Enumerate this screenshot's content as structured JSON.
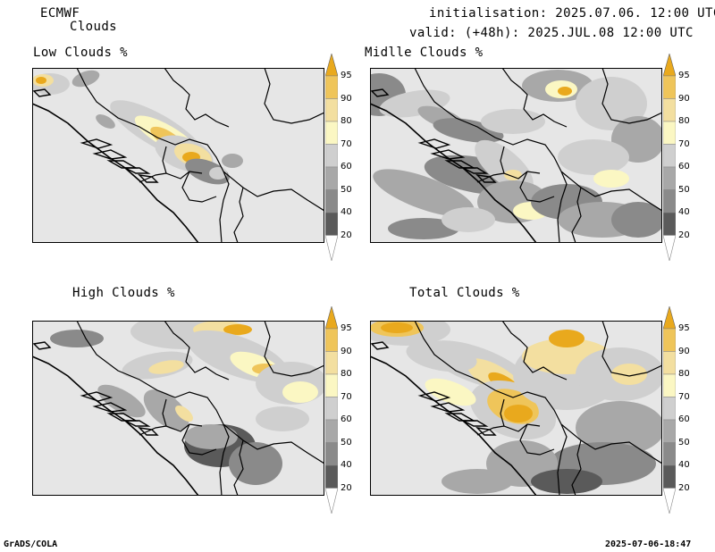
{
  "header": {
    "model": "ECMWF",
    "product": "Clouds",
    "initialisation": "initialisation: 2025.07.06. 12:00 UTC",
    "valid": "valid: (+48h): 2025.JUL.08 12:00 UTC"
  },
  "panels": [
    {
      "id": "low",
      "title": "Low Clouds %"
    },
    {
      "id": "middle",
      "title": "Midlle Clouds %"
    },
    {
      "id": "high",
      "title": "High Clouds %"
    },
    {
      "id": "total",
      "title": "Total Clouds %"
    }
  ],
  "colorbar": {
    "levels": [
      "20",
      "40",
      "50",
      "60",
      "70",
      "80",
      "90",
      "95"
    ],
    "colors": {
      "below20": "#ffffff",
      "20-40": "#5a5a5a",
      "40-50": "#8a8a8a",
      "50-60": "#a8a8a8",
      "60-70": "#cfcfcf",
      "70-80": "#fbf7c3",
      "80-90": "#f3dfa0",
      "90-95": "#efc55a",
      "above95": "#e9a91d"
    }
  },
  "background_color": "#e6e6e6",
  "footer": {
    "software": "GrADS/COLA",
    "timestamp": "2025-07-06-18:47"
  }
}
